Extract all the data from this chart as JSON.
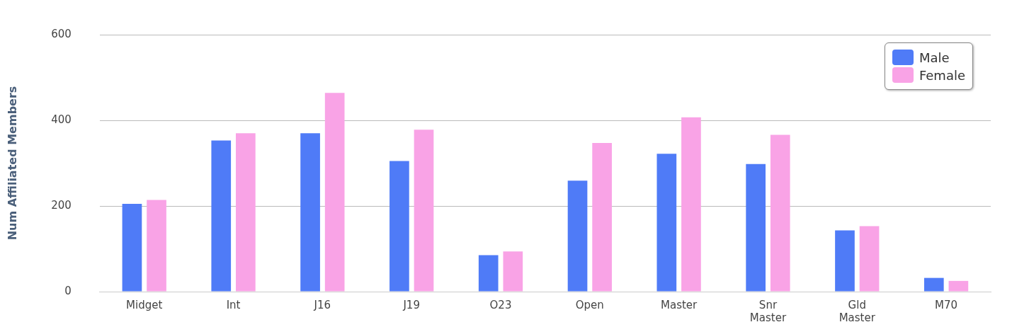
{
  "chart_data": {
    "type": "bar",
    "ylabel": "Num Affiliated Members",
    "categories": [
      "Midget",
      "Int",
      "J16",
      "J19",
      "O23",
      "Open",
      "Master",
      "Snr Master",
      "Gld Master",
      "M70"
    ],
    "series": [
      {
        "name": "Male",
        "color": "#4f7bf7",
        "values": [
          205,
          353,
          370,
          305,
          85,
          259,
          322,
          298,
          143,
          32
        ]
      },
      {
        "name": "Female",
        "color": "#f9a3e6",
        "values": [
          214,
          370,
          464,
          378,
          94,
          347,
          407,
          366,
          153,
          25
        ]
      }
    ],
    "ylim": [
      0,
      600
    ],
    "yticks": [
      0,
      200,
      400,
      600
    ],
    "grid": "y",
    "legend": "top right"
  }
}
